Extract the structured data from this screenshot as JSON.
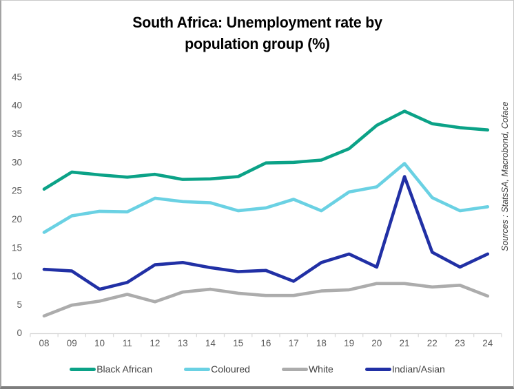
{
  "title": {
    "line1": "South Africa: Unemployment rate by",
    "line2": "population group (%)"
  },
  "source_note": "Sources : StatsSA, Macrobond, Coface",
  "colors": {
    "axis_line": "#d9d9d9",
    "tick_label": "#595959",
    "legend_label": "#404040",
    "title_text": "#000000",
    "source_text": "#3d3d3d"
  },
  "chart_data": {
    "type": "line",
    "title": "South Africa: Unemployment rate by population group (%)",
    "x": [
      "08",
      "09",
      "10",
      "11",
      "12",
      "13",
      "14",
      "15",
      "16",
      "17",
      "18",
      "19",
      "20",
      "21",
      "22",
      "23",
      "24"
    ],
    "series": [
      {
        "name": "Black African",
        "color": "#0ba287",
        "values": [
          25.3,
          28.3,
          27.8,
          27.4,
          27.9,
          27.0,
          27.1,
          27.5,
          29.9,
          30.0,
          30.4,
          32.4,
          36.5,
          39.0,
          36.8,
          36.1,
          35.7
        ]
      },
      {
        "name": "Coloured",
        "color": "#6ad1e3",
        "values": [
          17.7,
          20.6,
          21.4,
          21.3,
          23.7,
          23.1,
          22.9,
          21.5,
          22.0,
          23.5,
          21.5,
          24.8,
          25.7,
          29.8,
          23.8,
          21.5,
          22.2
        ]
      },
      {
        "name": "White",
        "color": "#acacac",
        "values": [
          3.0,
          4.9,
          5.6,
          6.8,
          5.5,
          7.2,
          7.7,
          7.0,
          6.6,
          6.6,
          7.4,
          7.6,
          8.7,
          8.7,
          8.1,
          8.4,
          6.5
        ]
      },
      {
        "name": "Indian/Asian",
        "color": "#2130a5",
        "values": [
          11.2,
          10.9,
          7.7,
          8.9,
          12.0,
          12.4,
          11.5,
          10.8,
          11.0,
          9.1,
          12.4,
          13.9,
          11.6,
          27.5,
          14.2,
          11.6,
          13.9
        ]
      }
    ],
    "xlabel": "",
    "ylabel": "",
    "ylim": [
      0,
      45
    ],
    "ytick_step": 5,
    "grid": false,
    "legend_position": "bottom"
  }
}
